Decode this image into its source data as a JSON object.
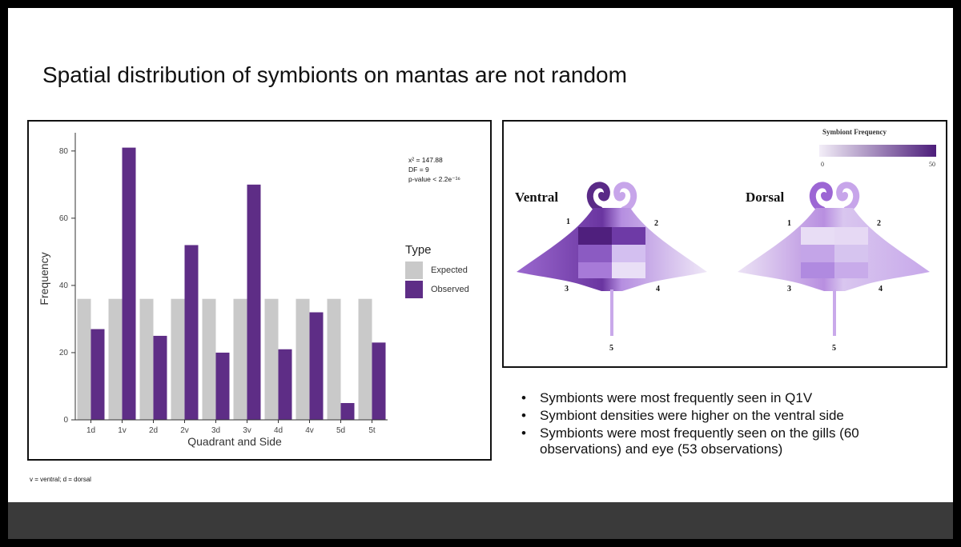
{
  "slide": {
    "title": "Spatial distribution of symbionts on mantas are not random",
    "footnote": "v = ventral; d = dorsal"
  },
  "stats": {
    "chi": "x² = 147.88",
    "df": "DF = 9",
    "p": "p-value < 2.2e⁻¹⁶"
  },
  "chart_data": {
    "type": "bar",
    "xlabel": "Quadrant and Side",
    "ylabel": "Frequency",
    "ylim": [
      0,
      84
    ],
    "yticks": [
      0,
      20,
      40,
      60,
      80
    ],
    "categories": [
      "1d",
      "1v",
      "2d",
      "2v",
      "3d",
      "3v",
      "4d",
      "4v",
      "5d",
      "5t"
    ],
    "legend_title": "Type",
    "legend_position": "right",
    "series": [
      {
        "name": "Expected",
        "color": "#c9c9c9",
        "values": [
          36,
          36,
          36,
          36,
          36,
          36,
          36,
          36,
          36,
          36
        ]
      },
      {
        "name": "Observed",
        "color": "#5e2d86",
        "values": [
          27,
          81,
          25,
          52,
          20,
          70,
          21,
          32,
          5,
          23
        ]
      }
    ]
  },
  "manta": {
    "legend_title": "Symbiont Frequency",
    "legend_min": "0",
    "legend_max": "50",
    "ventral_label": "Ventral",
    "dorsal_label": "Dorsal",
    "quadrants": [
      "1",
      "2",
      "3",
      "4",
      "5"
    ],
    "colors": {
      "light": "#ece4f4",
      "dark": "#4c1d7a"
    }
  },
  "bullets": [
    "Symbionts were most frequently seen in Q1V",
    "Symbiont densities were higher on the ventral side",
    "Symbionts were most frequently seen on the gills (60 observations) and eye (53 observations)"
  ],
  "bullet_marker": "•"
}
